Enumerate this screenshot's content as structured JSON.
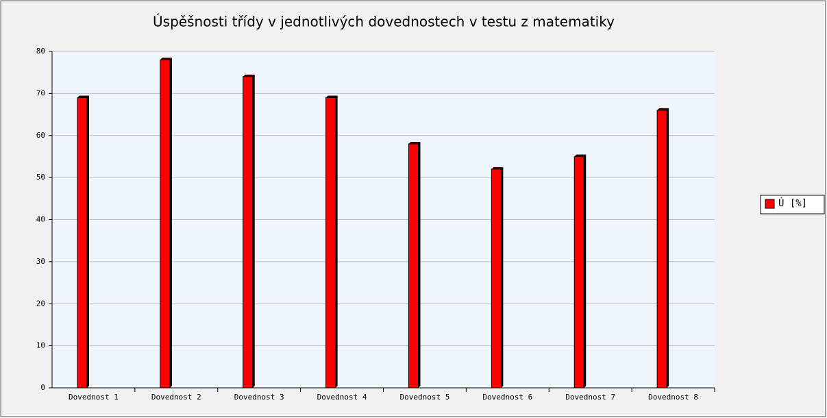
{
  "chart_data": {
    "type": "bar",
    "title": "Úspěšnosti třídy v jednotlivých dovednostech v testu z matematiky",
    "categories": [
      "Dovednost 1",
      "Dovednost 2",
      "Dovednost 3",
      "Dovednost 4",
      "Dovednost 5",
      "Dovednost 6",
      "Dovednost 7",
      "Dovednost 8"
    ],
    "series": [
      {
        "name": "Ú [%]",
        "color": "#ff0000",
        "values": [
          69,
          78,
          74,
          69,
          58,
          52,
          55,
          66
        ]
      }
    ],
    "ylim": [
      0,
      80
    ],
    "yticks": [
      0,
      10,
      20,
      30,
      40,
      50,
      60,
      70,
      80
    ],
    "grid": true,
    "legend": "right"
  }
}
